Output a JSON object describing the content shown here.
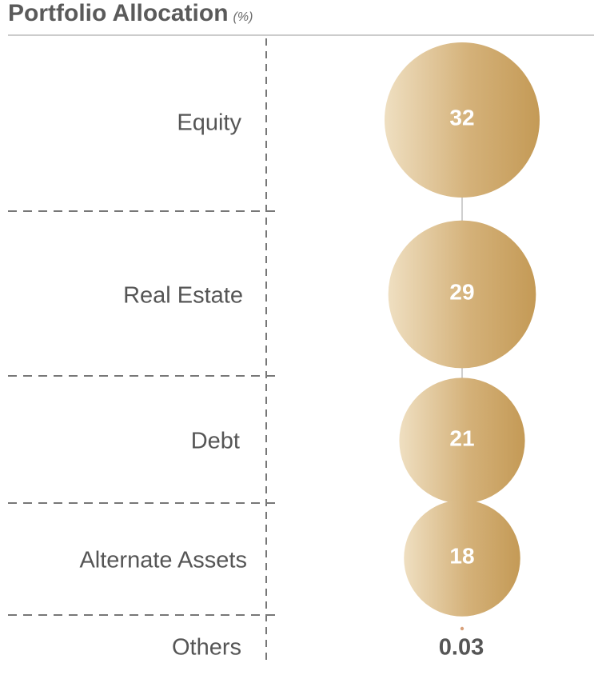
{
  "title": "Portfolio Allocation",
  "title_unit": "(%)",
  "colors": {
    "bubble_light": "#efdfc1",
    "bubble_dark": "#c49a56",
    "dot": "#d8a07a",
    "connector": "#cfcfcf",
    "divider": "#777777",
    "header_rule": "#cccccc"
  },
  "chart_data": {
    "type": "bubble",
    "title": "Portfolio Allocation",
    "unit": "(%)",
    "categories": [
      "Equity",
      "Real Estate",
      "Debt",
      "Alternate Assets",
      "Others"
    ],
    "values": [
      32,
      29,
      21,
      18,
      0.03
    ],
    "value_labels": [
      "32",
      "29",
      "21",
      "18",
      "0.03"
    ]
  }
}
